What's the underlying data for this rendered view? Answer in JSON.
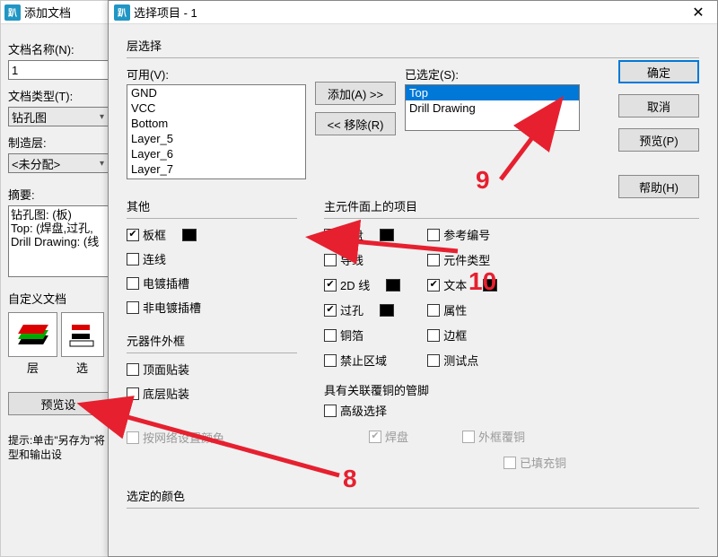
{
  "leftPanel": {
    "title": "添加文档",
    "docNameLabel": "文档名称(N):",
    "docNameValue": "1",
    "docTypeLabel": "文档类型(T):",
    "docTypeValue": "钻孔图",
    "fabLayerLabel": "制造层:",
    "fabLayerValue": "<未分配>",
    "summaryLabel": "摘要:",
    "summaryLines": [
      "钻孔图: (板)",
      "Top: (焊盘,过孔,",
      "Drill Drawing: (线"
    ],
    "customDocLabel": "自定义文档",
    "layerBtnLabel": "层",
    "optBtnLabel": "选",
    "previewBtn": "预览设",
    "hint": "提示:单击\"另存为\"将型和输出设"
  },
  "dialog": {
    "title": "选择项目 - 1",
    "closeGlyph": "✕",
    "layerSelectLabel": "层选择",
    "availableLabel": "可用(V):",
    "availableItems": [
      "GND",
      "VCC",
      "Bottom",
      "Layer_5",
      "Layer_6",
      "Layer_7"
    ],
    "selectedLabel": "已选定(S):",
    "selectedItems": [
      "Top",
      "Drill Drawing"
    ],
    "addBtn": "添加(A) >>",
    "removeBtn": "<< 移除(R)",
    "rightButtons": {
      "ok": "确定",
      "cancel": "取消",
      "preview": "预览(P)",
      "help": "帮助(H)"
    },
    "otherLabel": "其他",
    "otherChecks": [
      {
        "label": "板框",
        "checked": true,
        "swatch": true
      },
      {
        "label": "连线",
        "checked": false
      },
      {
        "label": "电镀插槽",
        "checked": false
      },
      {
        "label": "非电镀插槽",
        "checked": false
      }
    ],
    "compOutlineLabel": "元器件外框",
    "compOutlineChecks": [
      {
        "label": "顶面贴装",
        "checked": false
      },
      {
        "label": "底层贴装",
        "checked": false
      }
    ],
    "mainItemsLabel": "主元件面上的项目",
    "mainCol1": [
      {
        "label": "焊盘",
        "checked": true,
        "swatch": true
      },
      {
        "label": "导线",
        "checked": false
      },
      {
        "label": "2D 线",
        "checked": true,
        "swatch": true
      },
      {
        "label": "过孔",
        "checked": true,
        "swatch": true
      },
      {
        "label": "铜箔",
        "checked": false
      },
      {
        "label": "禁止区域",
        "checked": false
      }
    ],
    "mainCol2": [
      {
        "label": "参考编号",
        "checked": false
      },
      {
        "label": "元件类型",
        "checked": false
      },
      {
        "label": "文本",
        "checked": true,
        "swatch": true
      },
      {
        "label": "属性",
        "checked": false
      },
      {
        "label": "边框",
        "checked": false
      },
      {
        "label": "测试点",
        "checked": false
      }
    ],
    "assocCopperLabel": "具有关联覆铜的管脚",
    "advancedCheck": {
      "label": "高级选择",
      "checked": false
    },
    "disabledRow1": [
      {
        "label": "焊盘",
        "checked": true
      },
      {
        "label": "外框覆铜",
        "checked": false
      }
    ],
    "disabledRow2": {
      "label": "已填充铜",
      "checked": false
    },
    "colorByNetLabel": "按网络设置颜色",
    "selectedColorLabel": "选定的颜色"
  },
  "annotations": {
    "num8": "8",
    "num9": "9",
    "num10": "10",
    "color": "#e6202f"
  }
}
